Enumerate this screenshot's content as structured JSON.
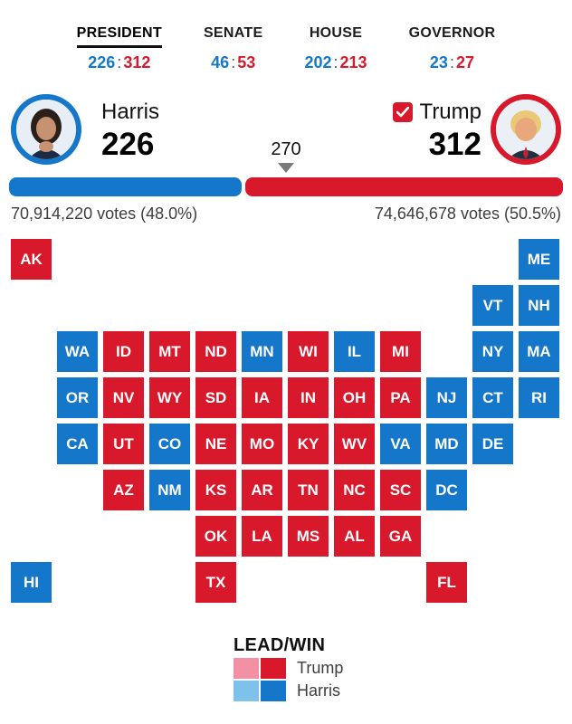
{
  "colors": {
    "dem_blue": "#1577C9",
    "rep_red": "#D8192C",
    "dem_lead_blue": "#7EC1EA",
    "rep_lead_pink": "#F290A4",
    "arrow_gray": "#7b7b7b"
  },
  "tabs": [
    {
      "label": "PRESIDENT",
      "dem": "226",
      "rep": "312",
      "colon": ":",
      "active": true
    },
    {
      "label": "SENATE",
      "dem": "46",
      "rep": "53",
      "colon": ":"
    },
    {
      "label": "HOUSE",
      "dem": "202",
      "rep": "213",
      "colon": ":"
    },
    {
      "label": "GOVERNOR",
      "dem": "23",
      "rep": "27",
      "colon": ":"
    }
  ],
  "race": {
    "threshold": "270",
    "left": {
      "name": "Harris",
      "electoral_votes": "226",
      "popular": "70,914,220 votes (48.0%)"
    },
    "right": {
      "name": "Trump",
      "electoral_votes": "312",
      "popular": "74,646,678 votes (50.5%)",
      "winner_checked": true
    },
    "bar": {
      "dem_width_pct": 42.0
    }
  },
  "chart_data": {
    "type": "heatmap",
    "title": "US presidential election tile grid map",
    "legend_position": "bottom",
    "series": [
      {
        "name": "Trump",
        "electoral": 312
      },
      {
        "name": "Harris",
        "electoral": 226
      }
    ]
  },
  "map": {
    "states": [
      {
        "code": "AK",
        "party": "rep",
        "col": 0,
        "row": 0
      },
      {
        "code": "ME",
        "party": "dem",
        "col": 11,
        "row": 0
      },
      {
        "code": "VT",
        "party": "dem",
        "col": 10,
        "row": 1
      },
      {
        "code": "NH",
        "party": "dem",
        "col": 11,
        "row": 1
      },
      {
        "code": "WA",
        "party": "dem",
        "col": 1,
        "row": 2
      },
      {
        "code": "ID",
        "party": "rep",
        "col": 2,
        "row": 2
      },
      {
        "code": "MT",
        "party": "rep",
        "col": 3,
        "row": 2
      },
      {
        "code": "ND",
        "party": "rep",
        "col": 4,
        "row": 2
      },
      {
        "code": "MN",
        "party": "dem",
        "col": 5,
        "row": 2
      },
      {
        "code": "WI",
        "party": "rep",
        "col": 6,
        "row": 2
      },
      {
        "code": "IL",
        "party": "dem",
        "col": 7,
        "row": 2
      },
      {
        "code": "MI",
        "party": "rep",
        "col": 8,
        "row": 2
      },
      {
        "code": "NY",
        "party": "dem",
        "col": 10,
        "row": 2
      },
      {
        "code": "MA",
        "party": "dem",
        "col": 11,
        "row": 2
      },
      {
        "code": "OR",
        "party": "dem",
        "col": 1,
        "row": 3
      },
      {
        "code": "NV",
        "party": "rep",
        "col": 2,
        "row": 3
      },
      {
        "code": "WY",
        "party": "rep",
        "col": 3,
        "row": 3
      },
      {
        "code": "SD",
        "party": "rep",
        "col": 4,
        "row": 3
      },
      {
        "code": "IA",
        "party": "rep",
        "col": 5,
        "row": 3
      },
      {
        "code": "IN",
        "party": "rep",
        "col": 6,
        "row": 3
      },
      {
        "code": "OH",
        "party": "rep",
        "col": 7,
        "row": 3
      },
      {
        "code": "PA",
        "party": "rep",
        "col": 8,
        "row": 3
      },
      {
        "code": "NJ",
        "party": "dem",
        "col": 9,
        "row": 3
      },
      {
        "code": "CT",
        "party": "dem",
        "col": 10,
        "row": 3
      },
      {
        "code": "RI",
        "party": "dem",
        "col": 11,
        "row": 3
      },
      {
        "code": "CA",
        "party": "dem",
        "col": 1,
        "row": 4
      },
      {
        "code": "UT",
        "party": "rep",
        "col": 2,
        "row": 4
      },
      {
        "code": "CO",
        "party": "dem",
        "col": 3,
        "row": 4
      },
      {
        "code": "NE",
        "party": "rep",
        "col": 4,
        "row": 4
      },
      {
        "code": "MO",
        "party": "rep",
        "col": 5,
        "row": 4
      },
      {
        "code": "KY",
        "party": "rep",
        "col": 6,
        "row": 4
      },
      {
        "code": "WV",
        "party": "rep",
        "col": 7,
        "row": 4
      },
      {
        "code": "VA",
        "party": "dem",
        "col": 8,
        "row": 4
      },
      {
        "code": "MD",
        "party": "dem",
        "col": 9,
        "row": 4
      },
      {
        "code": "DE",
        "party": "dem",
        "col": 10,
        "row": 4
      },
      {
        "code": "AZ",
        "party": "rep",
        "col": 2,
        "row": 5
      },
      {
        "code": "NM",
        "party": "dem",
        "col": 3,
        "row": 5
      },
      {
        "code": "KS",
        "party": "rep",
        "col": 4,
        "row": 5
      },
      {
        "code": "AR",
        "party": "rep",
        "col": 5,
        "row": 5
      },
      {
        "code": "TN",
        "party": "rep",
        "col": 6,
        "row": 5
      },
      {
        "code": "NC",
        "party": "rep",
        "col": 7,
        "row": 5
      },
      {
        "code": "SC",
        "party": "rep",
        "col": 8,
        "row": 5
      },
      {
        "code": "DC",
        "party": "dem",
        "col": 9,
        "row": 5
      },
      {
        "code": "OK",
        "party": "rep",
        "col": 4,
        "row": 6
      },
      {
        "code": "LA",
        "party": "rep",
        "col": 5,
        "row": 6
      },
      {
        "code": "MS",
        "party": "rep",
        "col": 6,
        "row": 6
      },
      {
        "code": "AL",
        "party": "rep",
        "col": 7,
        "row": 6
      },
      {
        "code": "GA",
        "party": "rep",
        "col": 8,
        "row": 6
      },
      {
        "code": "HI",
        "party": "dem",
        "col": 0,
        "row": 7
      },
      {
        "code": "TX",
        "party": "rep",
        "col": 4,
        "row": 7
      },
      {
        "code": "FL",
        "party": "rep",
        "col": 9,
        "row": 7
      }
    ]
  },
  "legend": {
    "title": "LEAD/WIN",
    "entries": [
      {
        "label": "Trump",
        "lead_color": "#F290A4",
        "win_color": "#D8192C"
      },
      {
        "label": "Harris",
        "lead_color": "#7EC1EA",
        "win_color": "#1577C9"
      }
    ]
  }
}
